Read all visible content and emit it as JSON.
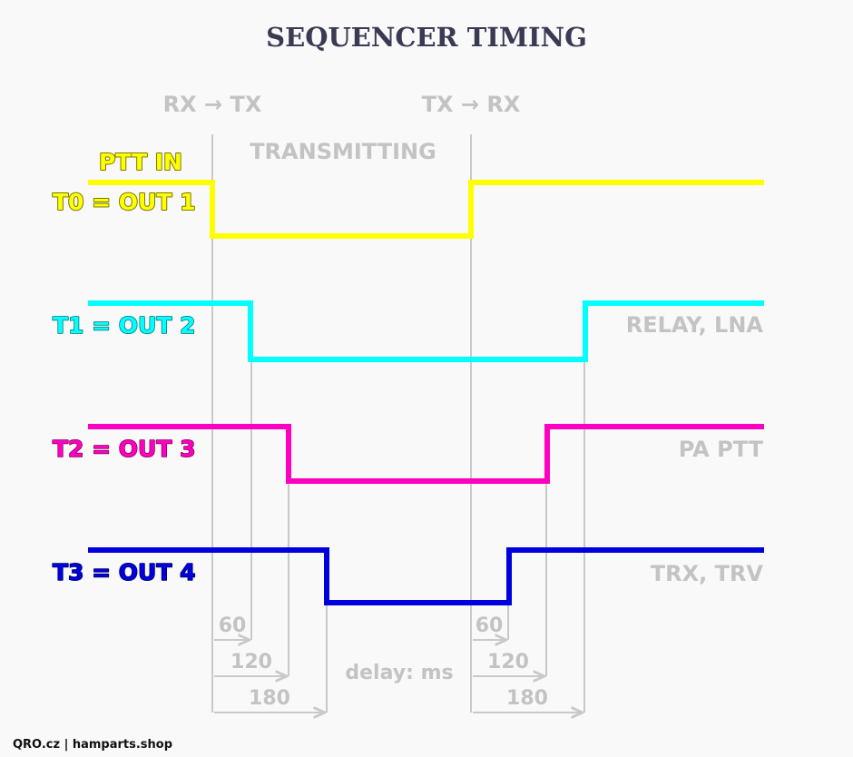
{
  "title": "SEQUENCER TIMING",
  "events": {
    "rx_to_tx": "RX → TX",
    "tx_to_rx": "TX → RX"
  },
  "state_label": "TRANSMITTING",
  "signals": [
    {
      "label": "T0 = OUT 1",
      "sublabel": "PTT IN",
      "note": "",
      "color": "#ffff00",
      "outline": "#7a7a00",
      "delay_ms": 0
    },
    {
      "label": "T1 = OUT 2",
      "note": "RELAY, LNA",
      "color": "#00ffff",
      "outline": "#006f6f",
      "delay_ms": 60
    },
    {
      "label": "T2 = OUT 3",
      "note": "PA PTT",
      "color": "#ff00bf",
      "outline": "#7a005a",
      "delay_ms": 120
    },
    {
      "label": "T3 = OUT 4",
      "note": "TRX, TRV",
      "color": "#0000dd",
      "outline": "#00005e",
      "delay_ms": 180
    }
  ],
  "delay_caption": "delay: ms",
  "delays_on": [
    "60",
    "120",
    "180"
  ],
  "delays_off": [
    "60",
    "120",
    "180"
  ],
  "footer": "QRO.cz | hamparts.shop",
  "colors": {
    "background": "#f9f9f9",
    "title": "#3a3a55",
    "guide": "#c9c9c9",
    "grey_text": "#c3c3c3"
  }
}
